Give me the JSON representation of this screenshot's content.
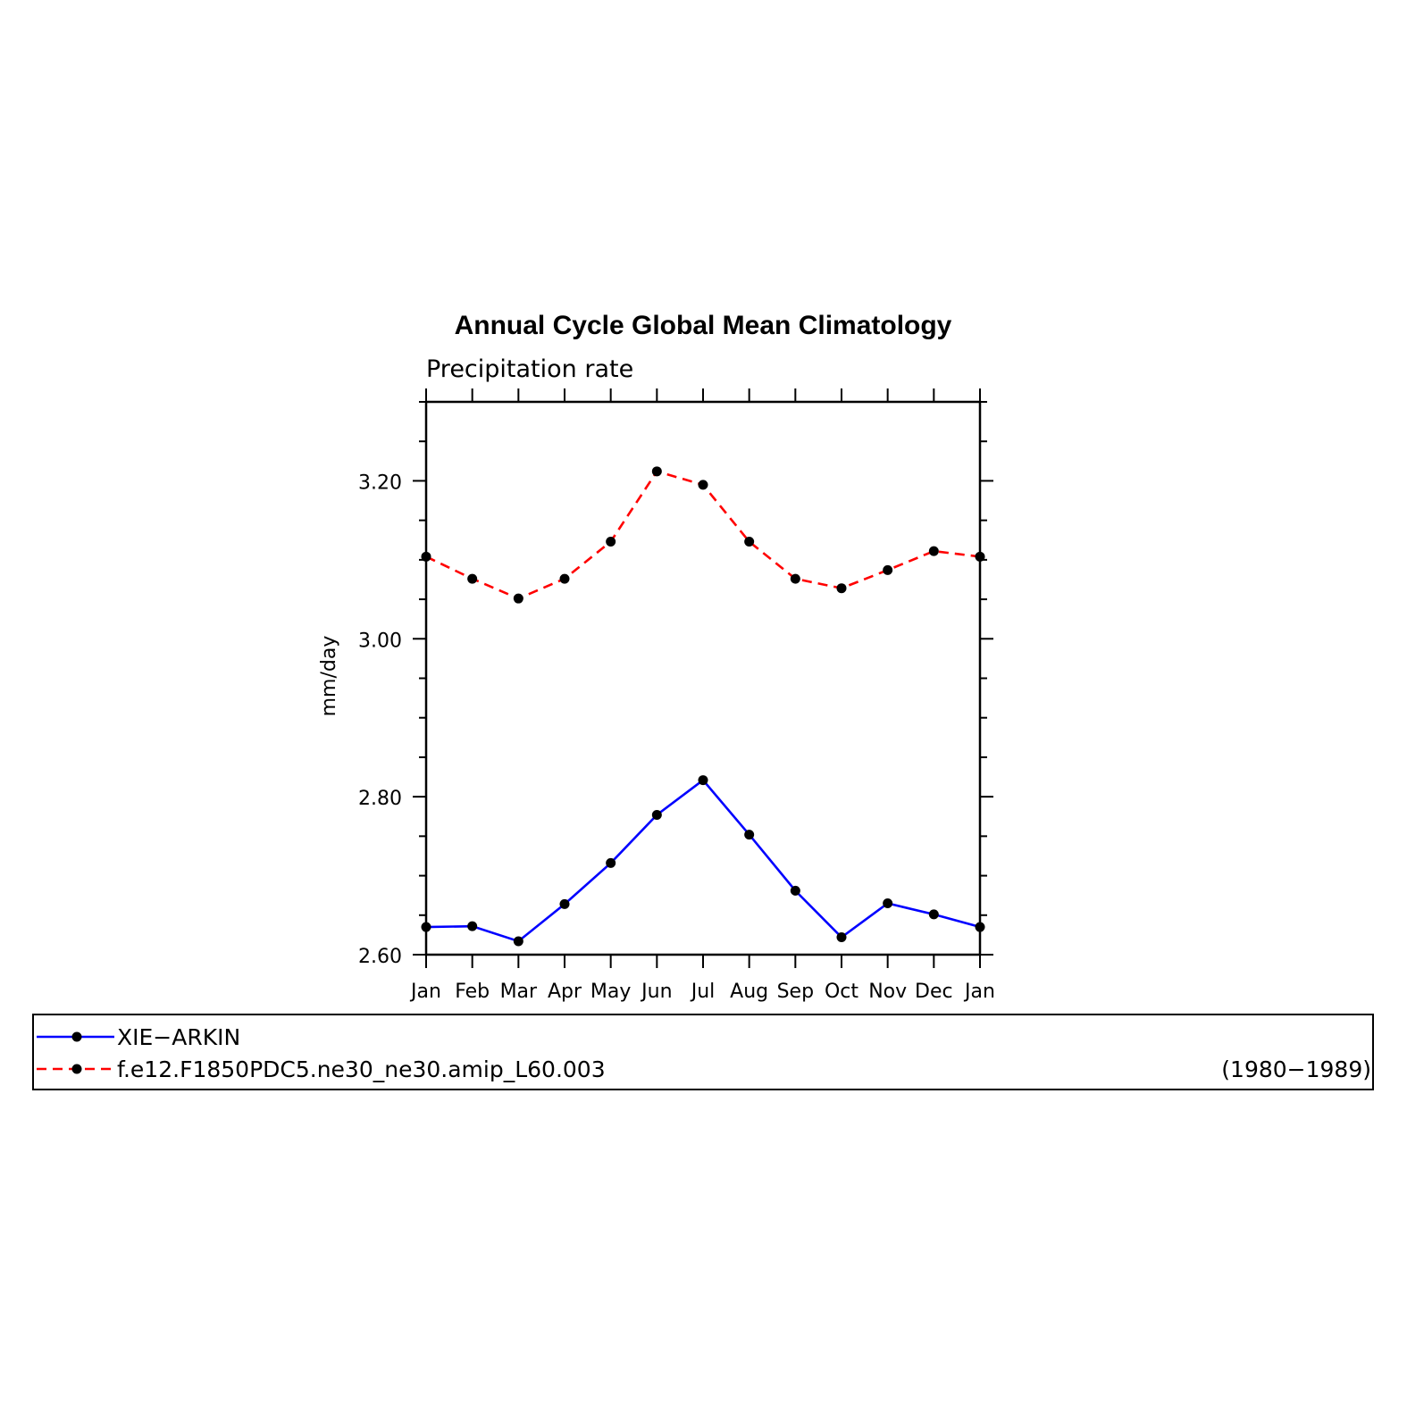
{
  "chart_data": {
    "type": "line",
    "title": "Annual Cycle Global Mean Climatology",
    "subtitle": "Precipitation rate",
    "xlabel": "",
    "ylabel": "mm/day",
    "categories": [
      "Jan",
      "Feb",
      "Mar",
      "Apr",
      "May",
      "Jun",
      "Jul",
      "Aug",
      "Sep",
      "Oct",
      "Nov",
      "Dec",
      "Jan"
    ],
    "ylim": [
      2.6,
      3.3
    ],
    "yticks": [
      2.6,
      2.8,
      3.0,
      3.2
    ],
    "ytick_labels": [
      "2.60",
      "2.80",
      "3.00",
      "3.20"
    ],
    "grid": false,
    "legend_position": "bottom",
    "series": [
      {
        "name": "XIE−ARKIN",
        "color": "#0000ff",
        "dash": "solid",
        "marker": "filled-circle",
        "values": [
          2.635,
          2.636,
          2.617,
          2.664,
          2.716,
          2.777,
          2.821,
          2.752,
          2.681,
          2.622,
          2.665,
          2.651,
          2.635
        ]
      },
      {
        "name": "f.e12.F1850PDC5.ne30_ne30.amip_L60.003",
        "color": "#ff0000",
        "dash": "dashed",
        "marker": "filled-circle",
        "values": [
          3.104,
          3.076,
          3.051,
          3.076,
          3.123,
          3.212,
          3.195,
          3.123,
          3.076,
          3.064,
          3.087,
          3.111,
          3.104
        ]
      }
    ],
    "legend_note": "(1980−1989)"
  }
}
